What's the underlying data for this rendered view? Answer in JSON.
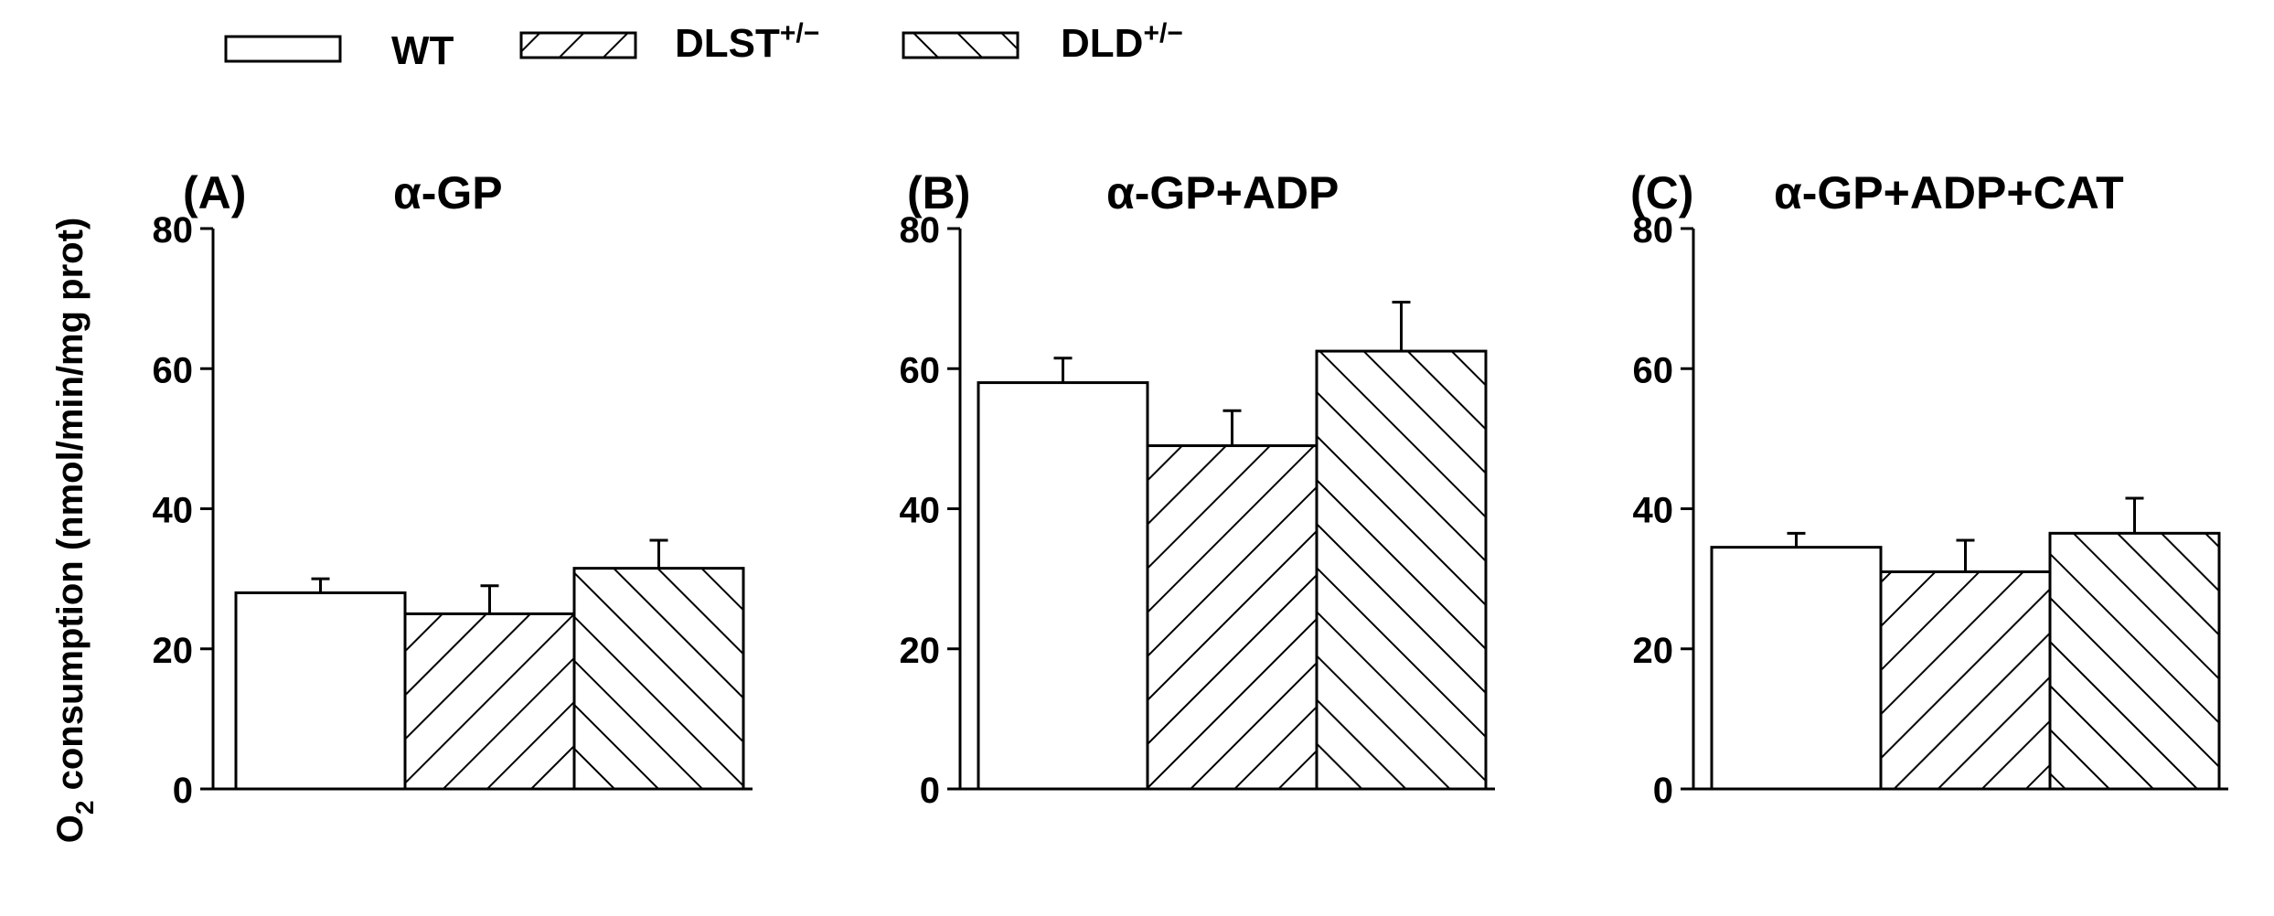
{
  "legend": [
    {
      "label": "WT",
      "sup": "",
      "pattern": "none"
    },
    {
      "label": "DLST",
      "sup": "+/−",
      "pattern": "forward"
    },
    {
      "label": "DLD",
      "sup": "+/−",
      "pattern": "backward"
    }
  ],
  "ylabel": {
    "prefix": "O",
    "sub": "2",
    "rest": " consumption (nmol/min/mg prot)"
  },
  "chart_data": [
    {
      "type": "bar",
      "panel": "(A)",
      "title": "α-GP",
      "categories": [
        "WT",
        "DLST+/−",
        "DLD+/−"
      ],
      "values": [
        28,
        25,
        31.5
      ],
      "errors": [
        2,
        4,
        4
      ],
      "ylim": [
        0,
        80
      ],
      "yticks": [
        "0",
        "20",
        "40",
        "60",
        "80"
      ]
    },
    {
      "type": "bar",
      "panel": "(B)",
      "title": "α-GP+ADP",
      "categories": [
        "WT",
        "DLST+/−",
        "DLD+/−"
      ],
      "values": [
        58,
        49,
        62.5
      ],
      "errors": [
        3.5,
        5,
        7
      ],
      "ylim": [
        0,
        80
      ],
      "yticks": [
        "0",
        "20",
        "40",
        "60",
        "80"
      ]
    },
    {
      "type": "bar",
      "panel": "(C)",
      "title": "α-GP+ADP+CAT",
      "categories": [
        "WT",
        "DLST+/−",
        "DLD+/−"
      ],
      "values": [
        34.5,
        31,
        36.5
      ],
      "errors": [
        2,
        4.5,
        5
      ],
      "ylim": [
        0,
        80
      ],
      "yticks": [
        "0",
        "20",
        "40",
        "60",
        "80"
      ]
    }
  ]
}
